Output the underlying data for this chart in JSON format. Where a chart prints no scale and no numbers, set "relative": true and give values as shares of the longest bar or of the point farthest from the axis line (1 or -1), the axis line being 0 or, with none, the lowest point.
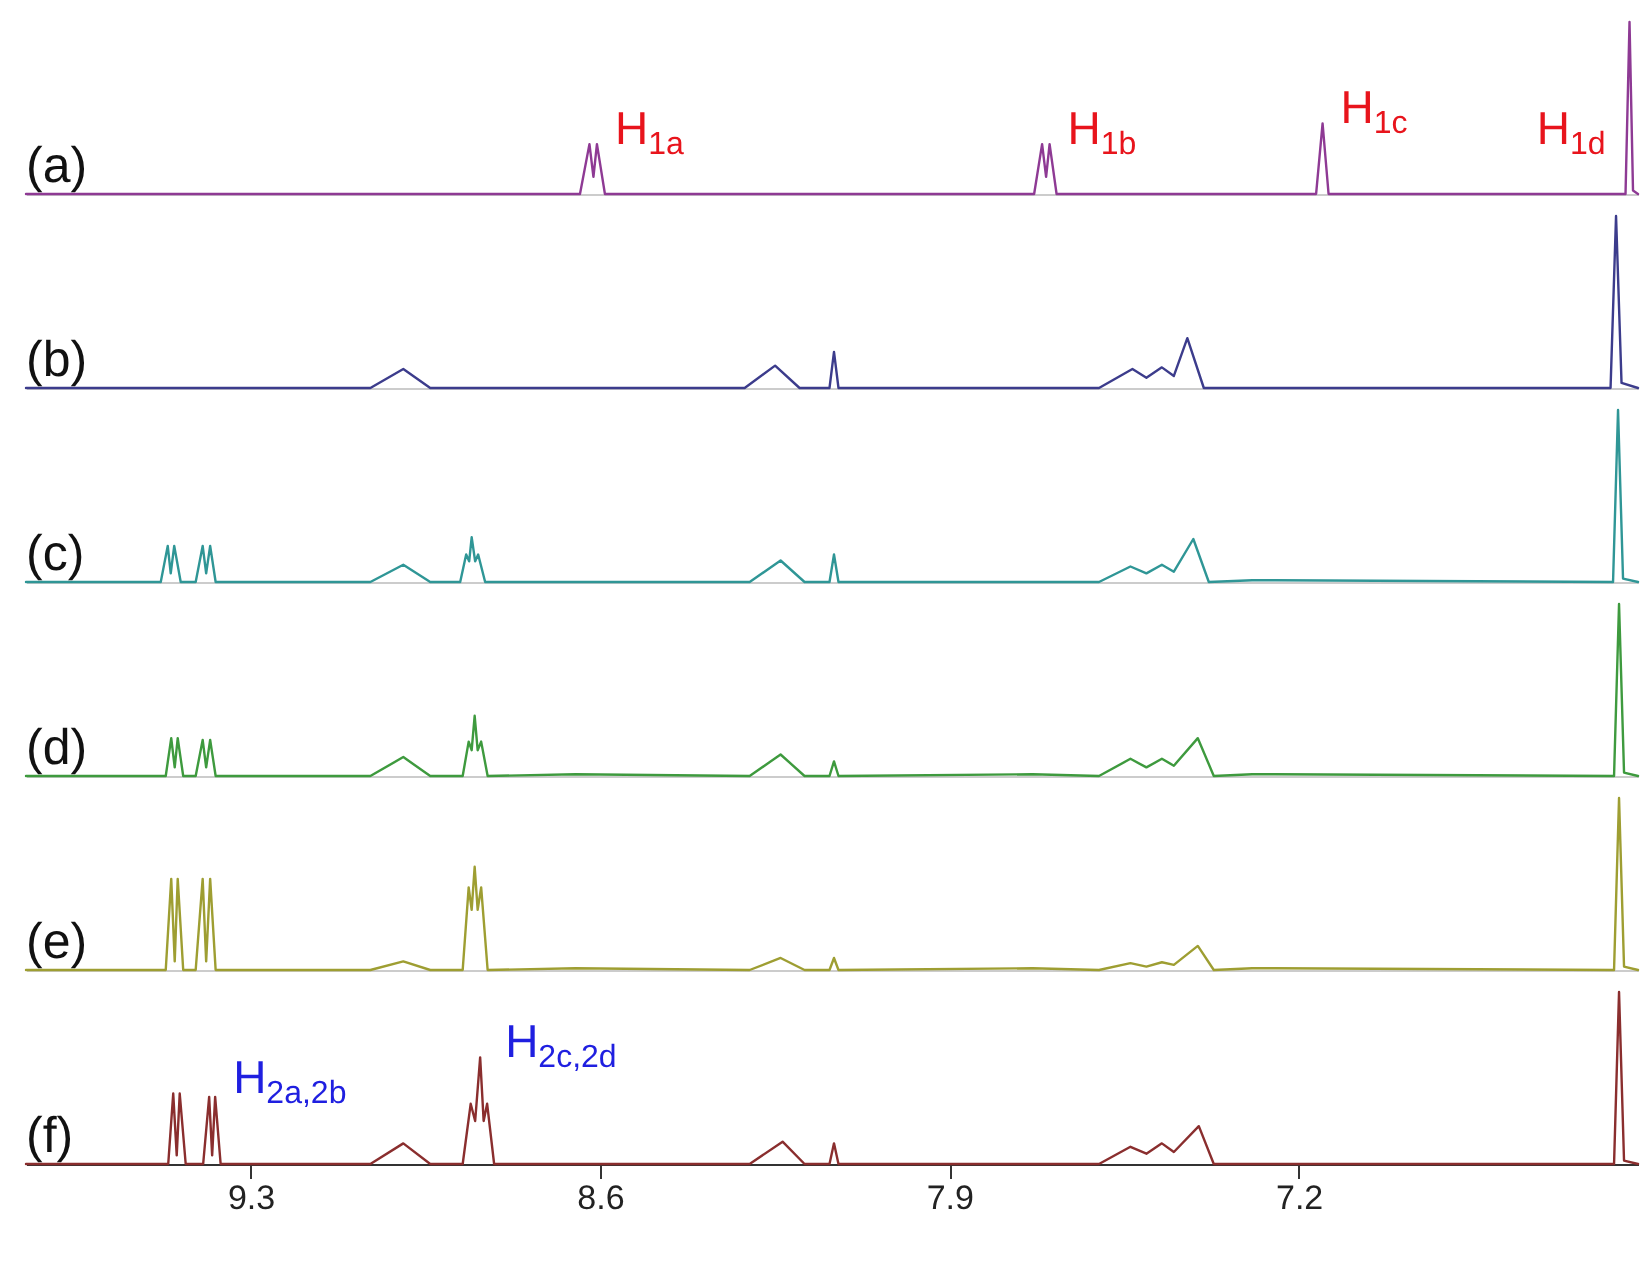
{
  "chart_data": [
    {
      "type": "line",
      "relative": true,
      "xlim": [
        9.75,
        6.52
      ],
      "tick_labels": false,
      "series": [
        {
          "name": "(a)",
          "color": "#8e3a94",
          "x": [
            9.75,
            8.64,
            8.621,
            8.613,
            8.606,
            8.59,
            7.73,
            7.714,
            7.706,
            7.699,
            7.685,
            7.165,
            7.152,
            7.14,
            6.545,
            6.537,
            6.53,
            6.52
          ],
          "values": [
            0,
            0,
            0.29,
            0.1,
            0.29,
            0,
            0,
            0.29,
            0.1,
            0.29,
            0,
            0,
            0.41,
            0,
            0,
            1,
            0.02,
            0
          ]
        }
      ],
      "annotations": [
        {
          "text": "H$_{1a}$",
          "x": 8.606,
          "y": 0.29
        },
        {
          "text": "H$_{1b}$",
          "x": 7.699,
          "y": 0.29
        },
        {
          "text": "H$_{1c}$",
          "x": 7.152,
          "y": 0.41
        },
        {
          "text": "H$_{1d}$",
          "x": 6.537,
          "y": 0.29
        }
      ]
    },
    {
      "type": "line",
      "relative": true,
      "xlim": [
        9.75,
        6.52
      ],
      "tick_labels": false,
      "series": [
        {
          "name": "(b)",
          "color": "#3c3c8c",
          "x": [
            9.75,
            9.06,
            8.994,
            8.94,
            8.31,
            8.249,
            8.2,
            8.14,
            8.131,
            8.122,
            7.6,
            7.533,
            7.505,
            7.474,
            7.45,
            7.423,
            7.39,
            6.575,
            6.564,
            6.553,
            6.52
          ],
          "values": [
            0,
            0,
            0.11,
            0,
            0,
            0.13,
            0,
            0,
            0.21,
            0,
            0,
            0.11,
            0.06,
            0.12,
            0.07,
            0.29,
            0,
            0,
            1,
            0.03,
            0
          ]
        }
      ]
    },
    {
      "type": "line",
      "relative": true,
      "xlim": [
        9.75,
        6.52
      ],
      "tick_labels": false,
      "series": [
        {
          "name": "(c)",
          "color": "#2f9696",
          "x": [
            9.75,
            9.48,
            9.466,
            9.46,
            9.453,
            9.44,
            9.41,
            9.396,
            9.389,
            9.381,
            9.37,
            9.06,
            8.994,
            8.94,
            8.88,
            8.868,
            8.862,
            8.857,
            8.85,
            8.844,
            8.83,
            8.3,
            8.238,
            8.19,
            8.14,
            8.131,
            8.122,
            7.6,
            7.537,
            7.505,
            7.474,
            7.45,
            7.411,
            7.38,
            7.293,
            7.246,
            6.57,
            6.56,
            6.55,
            6.52
          ],
          "values": [
            0,
            0,
            0.21,
            0.05,
            0.21,
            0,
            0,
            0.21,
            0.05,
            0.21,
            0,
            0,
            0.1,
            0,
            0,
            0.16,
            0.12,
            0.26,
            0.12,
            0.16,
            0,
            0,
            0.125,
            0,
            0,
            0.16,
            0,
            0,
            0.09,
            0.05,
            0.1,
            0.06,
            0.25,
            0,
            0.01,
            0.01,
            0,
            1,
            0.02,
            0
          ]
        }
      ]
    },
    {
      "type": "line",
      "relative": true,
      "xlim": [
        9.75,
        6.52
      ],
      "tick_labels": false,
      "series": [
        {
          "name": "(d)",
          "color": "#3e9a3e",
          "x": [
            9.75,
            9.47,
            9.459,
            9.452,
            9.446,
            9.435,
            9.41,
            9.396,
            9.389,
            9.381,
            9.37,
            9.06,
            8.994,
            8.94,
            8.875,
            8.863,
            8.857,
            8.851,
            8.845,
            8.838,
            8.825,
            8.649,
            8.3,
            8.238,
            8.19,
            8.14,
            8.131,
            8.122,
            7.733,
            7.6,
            7.537,
            7.505,
            7.474,
            7.45,
            7.402,
            7.37,
            7.293,
            7.246,
            6.568,
            6.558,
            6.548,
            6.52
          ],
          "values": [
            0,
            0,
            0.22,
            0.05,
            0.22,
            0,
            0,
            0.21,
            0.05,
            0.21,
            0,
            0,
            0.11,
            0,
            0,
            0.2,
            0.15,
            0.35,
            0.15,
            0.2,
            0,
            0.01,
            0,
            0.125,
            0,
            0,
            0.085,
            0,
            0.01,
            0,
            0.1,
            0.05,
            0.1,
            0.06,
            0.22,
            0,
            0.01,
            0.01,
            0,
            1,
            0.02,
            0
          ]
        }
      ]
    },
    {
      "type": "line",
      "relative": true,
      "xlim": [
        9.75,
        6.52
      ],
      "tick_labels": false,
      "series": [
        {
          "name": "(e)",
          "color": "#9e9e32",
          "x": [
            9.75,
            9.47,
            9.459,
            9.452,
            9.446,
            9.435,
            9.41,
            9.396,
            9.389,
            9.381,
            9.37,
            9.06,
            8.994,
            8.94,
            8.875,
            8.863,
            8.857,
            8.851,
            8.845,
            8.838,
            8.825,
            8.649,
            8.3,
            8.238,
            8.19,
            8.14,
            8.131,
            8.122,
            7.733,
            7.6,
            7.537,
            7.505,
            7.474,
            7.45,
            7.402,
            7.37,
            7.293,
            7.246,
            6.568,
            6.558,
            6.548,
            6.52
          ],
          "values": [
            0,
            0,
            0.53,
            0.05,
            0.53,
            0,
            0,
            0.53,
            0.05,
            0.53,
            0,
            0,
            0.05,
            0,
            0,
            0.48,
            0.35,
            0.6,
            0.35,
            0.48,
            0,
            0.01,
            0,
            0.07,
            0,
            0,
            0.07,
            0,
            0.01,
            0,
            0.04,
            0.02,
            0.045,
            0.03,
            0.14,
            0,
            0.01,
            0.01,
            0,
            1,
            0.02,
            0
          ]
        }
      ]
    },
    {
      "type": "line",
      "relative": true,
      "xlim": [
        9.75,
        6.52
      ],
      "tick_labels": "x",
      "xticks": [
        9.3,
        8.6,
        7.9,
        7.2
      ],
      "series": [
        {
          "name": "(f)",
          "color": "#8a2e2e",
          "x": [
            9.75,
            9.465,
            9.455,
            9.448,
            9.442,
            9.43,
            9.395,
            9.383,
            9.377,
            9.371,
            9.36,
            9.06,
            8.994,
            8.94,
            8.875,
            8.859,
            8.85,
            8.84,
            8.833,
            8.826,
            8.812,
            8.3,
            8.234,
            8.19,
            8.14,
            8.131,
            8.122,
            7.6,
            7.537,
            7.505,
            7.474,
            7.45,
            7.4,
            7.37,
            6.568,
            6.558,
            6.548,
            6.52
          ],
          "values": [
            0,
            0,
            0.41,
            0.05,
            0.41,
            0,
            0,
            0.39,
            0.05,
            0.39,
            0,
            0,
            0.12,
            0,
            0,
            0.35,
            0.25,
            0.62,
            0.25,
            0.35,
            0,
            0,
            0.13,
            0,
            0,
            0.12,
            0,
            0,
            0.1,
            0.06,
            0.12,
            0.07,
            0.22,
            0,
            0,
            1,
            0.02,
            0
          ]
        }
      ],
      "annotations": [
        {
          "text": "H$_{2a,2b}$",
          "x": 9.371,
          "y": 0.41
        },
        {
          "text": "H$_{2c,2d}$",
          "x": 8.826,
          "y": 0.62
        }
      ]
    }
  ]
}
